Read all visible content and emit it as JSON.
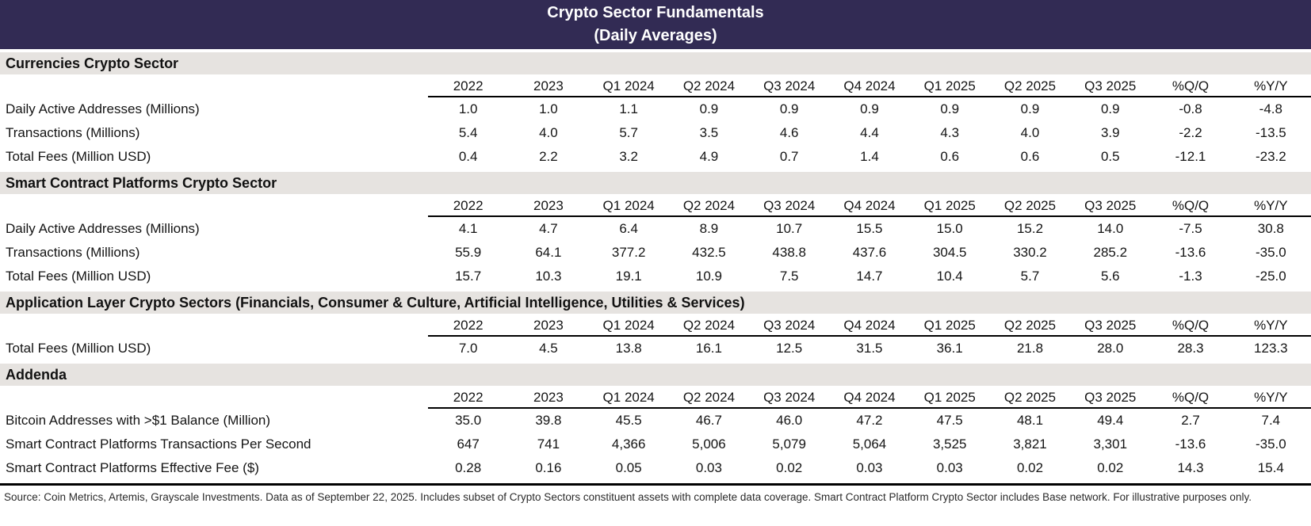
{
  "title": {
    "line1": "Crypto Sector Fundamentals",
    "line2": "(Daily Averages)"
  },
  "colors": {
    "title_bar_bg": "#322b54",
    "title_text": "#ffffff",
    "section_bar_bg": "#e6e3e0",
    "rule_color": "#000000"
  },
  "chart_data": {
    "type": "table",
    "title": "Crypto Sector Fundamentals (Daily Averages)",
    "columns": [
      "2022",
      "2023",
      "Q1 2024",
      "Q2 2024",
      "Q3 2024",
      "Q4 2024",
      "Q1 2025",
      "Q2 2025",
      "Q3 2025",
      "%Q/Q",
      "%Y/Y"
    ],
    "sections": [
      {
        "heading": "Currencies Crypto Sector",
        "rows": [
          {
            "label": "Daily Active Addresses (Millions)",
            "values": [
              "1.0",
              "1.0",
              "1.1",
              "0.9",
              "0.9",
              "0.9",
              "0.9",
              "0.9",
              "0.9",
              "-0.8",
              "-4.8"
            ]
          },
          {
            "label": "Transactions (Millions)",
            "values": [
              "5.4",
              "4.0",
              "5.7",
              "3.5",
              "4.6",
              "4.4",
              "4.3",
              "4.0",
              "3.9",
              "-2.2",
              "-13.5"
            ]
          },
          {
            "label": "Total Fees (Million USD)",
            "values": [
              "0.4",
              "2.2",
              "3.2",
              "4.9",
              "0.7",
              "1.4",
              "0.6",
              "0.6",
              "0.5",
              "-12.1",
              "-23.2"
            ]
          }
        ]
      },
      {
        "heading": "Smart Contract Platforms Crypto Sector",
        "rows": [
          {
            "label": "Daily Active Addresses (Millions)",
            "values": [
              "4.1",
              "4.7",
              "6.4",
              "8.9",
              "10.7",
              "15.5",
              "15.0",
              "15.2",
              "14.0",
              "-7.5",
              "30.8"
            ]
          },
          {
            "label": "Transactions (Millions)",
            "values": [
              "55.9",
              "64.1",
              "377.2",
              "432.5",
              "438.8",
              "437.6",
              "304.5",
              "330.2",
              "285.2",
              "-13.6",
              "-35.0"
            ]
          },
          {
            "label": "Total Fees (Million USD)",
            "values": [
              "15.7",
              "10.3",
              "19.1",
              "10.9",
              "7.5",
              "14.7",
              "10.4",
              "5.7",
              "5.6",
              "-1.3",
              "-25.0"
            ]
          }
        ]
      },
      {
        "heading": "Application Layer Crypto Sectors (Financials, Consumer & Culture, Artificial Intelligence, Utilities & Services)",
        "rows": [
          {
            "label": "Total Fees (Million USD)",
            "values": [
              "7.0",
              "4.5",
              "13.8",
              "16.1",
              "12.5",
              "31.5",
              "36.1",
              "21.8",
              "28.0",
              "28.3",
              "123.3"
            ]
          }
        ]
      },
      {
        "heading": "Addenda",
        "rows": [
          {
            "label": "Bitcoin Addresses with >$1 Balance (Million)",
            "values": [
              "35.0",
              "39.8",
              "45.5",
              "46.7",
              "46.0",
              "47.2",
              "47.5",
              "48.1",
              "49.4",
              "2.7",
              "7.4"
            ]
          },
          {
            "label": "Smart Contract Platforms Transactions Per Second",
            "values": [
              "647",
              "741",
              "4,366",
              "5,006",
              "5,079",
              "5,064",
              "3,525",
              "3,821",
              "3,301",
              "-13.6",
              "-35.0"
            ]
          },
          {
            "label": "Smart Contract Platforms Effective Fee ($)",
            "values": [
              "0.28",
              "0.16",
              "0.05",
              "0.03",
              "0.02",
              "0.03",
              "0.03",
              "0.02",
              "0.02",
              "14.3",
              "15.4"
            ]
          }
        ]
      }
    ]
  },
  "footnote": "Source: Coin Metrics, Artemis, Grayscale Investments. Data as of September 22, 2025. Includes subset of Crypto Sectors constituent assets with complete data coverage. Smart Contract Platform Crypto Sector includes Base network. For illustrative purposes only."
}
